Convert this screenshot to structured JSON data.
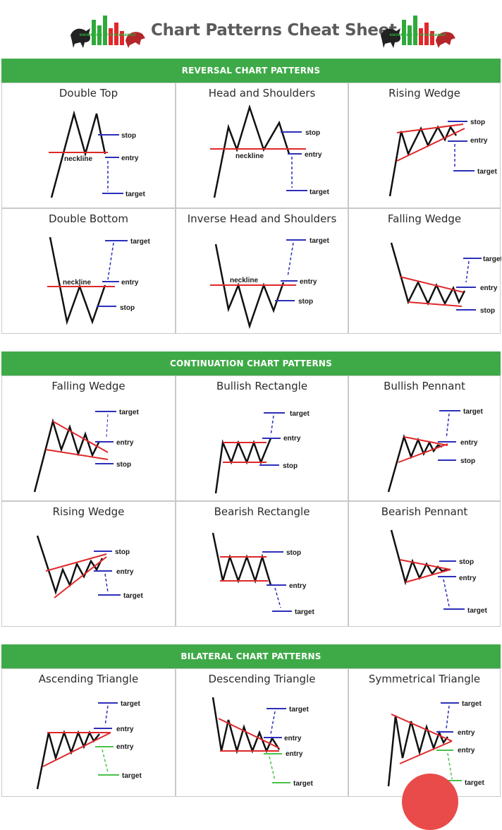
{
  "header": {
    "title": "Chart Patterns Cheat Sheet",
    "logo_text": "KNOWLEDGE OF STOCKMARKET"
  },
  "colors": {
    "band": "#3eaa47",
    "pattern_line": "#e0282a",
    "level_line": "#2c2fb8",
    "green_level": "#49c24a"
  },
  "sections": [
    {
      "title": "REVERSAL CHART PATTERNS",
      "patterns": [
        {
          "name": "Double Top",
          "labels": {
            "neckline": "neckline",
            "stop": "stop",
            "entry": "entry",
            "target": "target"
          }
        },
        {
          "name": "Head and Shoulders",
          "labels": {
            "neckline": "neckline",
            "stop": "stop",
            "entry": "entry",
            "target": "target"
          }
        },
        {
          "name": "Rising Wedge",
          "labels": {
            "stop": "stop",
            "entry": "entry",
            "target": "target"
          }
        },
        {
          "name": "Double Bottom",
          "labels": {
            "neckline": "neckline",
            "target": "target",
            "entry": "entry",
            "stop": "stop"
          }
        },
        {
          "name": "Inverse Head and Shoulders",
          "labels": {
            "neckline": "neckline",
            "target": "target",
            "entry": "entry",
            "stop": "stop"
          }
        },
        {
          "name": "Falling Wedge",
          "labels": {
            "target": "target",
            "entry": "entry",
            "stop": "stop"
          }
        }
      ]
    },
    {
      "title": "CONTINUATION CHART PATTERNS",
      "patterns": [
        {
          "name": "Falling Wedge",
          "labels": {
            "target": "target",
            "entry": "entry",
            "stop": "stop"
          }
        },
        {
          "name": "Bullish Rectangle",
          "labels": {
            "target": "target",
            "entry": "entry",
            "stop": "stop"
          }
        },
        {
          "name": "Bullish Pennant",
          "labels": {
            "target": "target",
            "entry": "entry",
            "stop": "stop"
          }
        },
        {
          "name": "Rising Wedge",
          "labels": {
            "stop": "stop",
            "entry": "entry",
            "target": "target"
          }
        },
        {
          "name": "Bearish Rectangle",
          "labels": {
            "stop": "stop",
            "entry": "entry",
            "target": "target"
          }
        },
        {
          "name": "Bearish Pennant",
          "labels": {
            "stop": "stop",
            "entry": "entry",
            "target": "target"
          }
        }
      ]
    },
    {
      "title": "BILATERAL CHART PATTERNS",
      "patterns": [
        {
          "name": "Ascending Triangle",
          "labels": {
            "target_up": "target",
            "entry_up": "entry",
            "entry_down": "entry",
            "target_down": "target"
          }
        },
        {
          "name": "Descending Triangle",
          "labels": {
            "target_up": "target",
            "entry_up": "entry",
            "entry_down": "entry",
            "target_down": "target"
          }
        },
        {
          "name": "Symmetrical Triangle",
          "labels": {
            "target_up": "target",
            "entry_up": "entry",
            "entry_down": "entry",
            "target_down": "target"
          }
        }
      ]
    }
  ]
}
